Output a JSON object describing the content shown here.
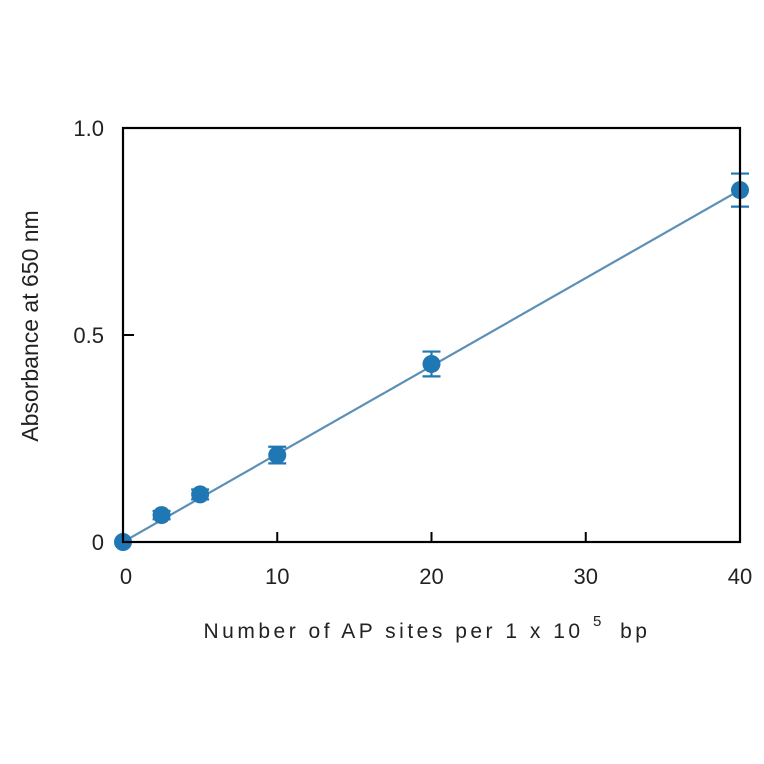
{
  "chart_data": {
    "type": "scatter",
    "title": "",
    "xlabel": "Number of AP sites per 1 x 10",
    "xlabel_superscript": "5",
    "xlabel_suffix": "bp",
    "ylabel": "Absorbance at 650 nm",
    "xlim": [
      0,
      40
    ],
    "ylim": [
      0,
      1.0
    ],
    "x_ticks": [
      0,
      10,
      20,
      30,
      40
    ],
    "x_tick_labels": [
      "0",
      "10",
      "20",
      "30",
      "40"
    ],
    "y_ticks": [
      0,
      0.5,
      1.0
    ],
    "y_tick_labels": [
      "0",
      "0.5",
      "1.0"
    ],
    "grid": false,
    "legend": "none",
    "color": "#1f77b4",
    "line_color": "#5b8fb5",
    "series": [
      {
        "x": [
          0,
          2.5,
          5,
          10,
          20,
          40
        ],
        "y": [
          0.0,
          0.065,
          0.115,
          0.21,
          0.43,
          0.85
        ],
        "error": [
          0.005,
          0.01,
          0.012,
          0.02,
          0.03,
          0.04
        ]
      }
    ],
    "fit_line": {
      "x": [
        0,
        40
      ],
      "y": [
        0.0,
        0.85
      ]
    }
  }
}
